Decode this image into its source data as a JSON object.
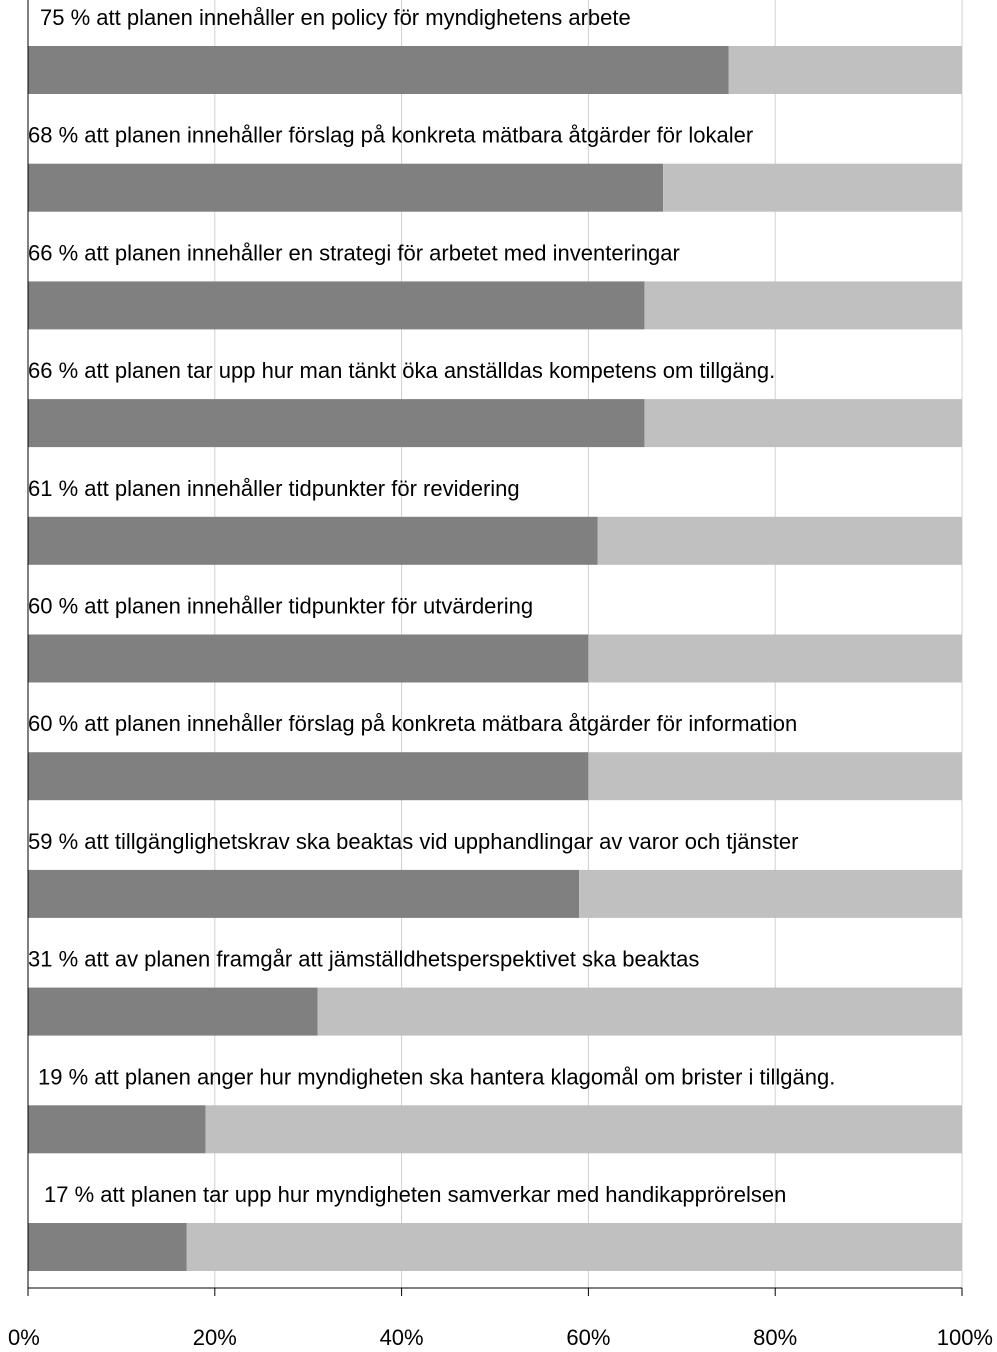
{
  "chart_data": {
    "type": "stacked-bar-horizontal",
    "categories": [
      "75 % att planen innehåller en policy för myndighetens arbete",
      "68 % att planen innehåller förslag på konkreta mätbara åtgärder för lokaler",
      "66 % att planen innehåller en strategi för arbetet med inventeringar",
      "66 % att planen tar upp hur man tänkt öka anställdas kompetens om tillgäng.",
      "61 % att planen innehåller tidpunkter för revidering",
      "60 % att planen innehåller tidpunkter för utvärdering",
      "60 % att planen innehåller förslag på konkreta mätbara åtgärder för information",
      "59 % att tillgänglighetskrav ska beaktas vid upphandlingar av varor och tjänster",
      "31 % att av planen framgår att jämställdhetsperspektivet ska beaktas",
      "19 % att planen anger hur myndigheten ska hantera klagomål om brister i tillgäng.",
      "17 % att planen tar upp hur myndigheten samverkar med handikapprörelsen"
    ],
    "series": [
      {
        "color": "#808080",
        "values": [
          75,
          68,
          66,
          66,
          61,
          60,
          60,
          59,
          31,
          19,
          17
        ]
      },
      {
        "color": "#c0c0c0",
        "values": [
          25,
          32,
          34,
          34,
          39,
          40,
          40,
          41,
          69,
          81,
          83
        ]
      }
    ],
    "xlim": [
      0,
      100
    ],
    "xticks": [
      {
        "value": 0,
        "label": "0%"
      },
      {
        "value": 20,
        "label": "20%"
      },
      {
        "value": 40,
        "label": "40%"
      },
      {
        "value": 60,
        "label": "60%"
      },
      {
        "value": 80,
        "label": "80%"
      },
      {
        "value": 100,
        "label": "100%"
      }
    ],
    "grid": true
  }
}
